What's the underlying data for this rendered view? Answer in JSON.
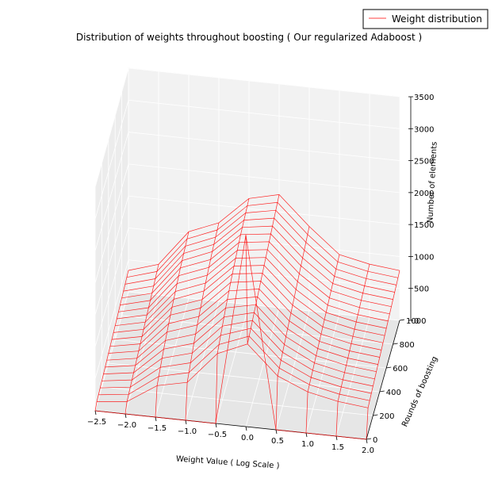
{
  "chart_data": {
    "type": "surface-3d-wireframe",
    "title": "Distribution of weights throughout boosting ( Our regularized Adaboost )",
    "xlabel": "Weight Value ( Log Scale )",
    "ylabel": "Rounds of boosting",
    "zlabel": "Number of elements",
    "xlim": [
      -2.5,
      2.0
    ],
    "ylim": [
      0,
      1000
    ],
    "zlim": [
      0,
      3500
    ],
    "x_ticks": [
      "−2.5",
      "−2.0",
      "−1.5",
      "−1.0",
      "−0.5",
      "0.0",
      "0.5",
      "1.0",
      "1.5",
      "2.0"
    ],
    "y_ticks": [
      "0",
      "200",
      "400",
      "600",
      "800",
      "1000"
    ],
    "z_ticks": [
      "0",
      "500",
      "1000",
      "1500",
      "2000",
      "2500",
      "3000",
      "3500"
    ],
    "legend": {
      "entries": [
        "Weight distribution"
      ],
      "location": "top-right"
    },
    "grid": true,
    "series": [
      {
        "name": "Weight distribution",
        "color": "#ff0000",
        "x": [
          -2.5,
          -2.0,
          -1.5,
          -1.0,
          -0.5,
          0.0,
          0.5,
          1.0,
          1.5,
          2.0
        ],
        "rounds": [
          0,
          50,
          100,
          150,
          200,
          250,
          300,
          350,
          400,
          450,
          500,
          550,
          600,
          650,
          700,
          750,
          800,
          850,
          900,
          950,
          1000
        ],
        "z_rows": [
          [
            0,
            0,
            0,
            0,
            0,
            3000,
            0,
            0,
            0,
            0
          ],
          [
            50,
            100,
            400,
            500,
            1000,
            1200,
            750,
            550,
            450,
            400
          ],
          [
            65,
            120,
            450,
            560,
            1050,
            1230,
            780,
            570,
            470,
            420
          ],
          [
            80,
            140,
            500,
            620,
            1100,
            1260,
            810,
            590,
            490,
            440
          ],
          [
            95,
            160,
            550,
            680,
            1150,
            1290,
            840,
            610,
            510,
            460
          ],
          [
            110,
            180,
            600,
            740,
            1200,
            1320,
            870,
            630,
            530,
            480
          ],
          [
            125,
            200,
            640,
            790,
            1250,
            1350,
            900,
            650,
            550,
            500
          ],
          [
            140,
            220,
            680,
            840,
            1290,
            1380,
            930,
            670,
            570,
            520
          ],
          [
            155,
            240,
            720,
            880,
            1330,
            1410,
            960,
            690,
            590,
            540
          ],
          [
            170,
            260,
            760,
            920,
            1370,
            1440,
            990,
            710,
            610,
            560
          ],
          [
            185,
            280,
            790,
            960,
            1410,
            1470,
            1020,
            730,
            630,
            580
          ],
          [
            200,
            300,
            820,
            1000,
            1440,
            1500,
            1050,
            750,
            650,
            600
          ],
          [
            215,
            320,
            850,
            1030,
            1470,
            1530,
            1080,
            770,
            670,
            620
          ],
          [
            230,
            340,
            880,
            1060,
            1500,
            1560,
            1110,
            790,
            690,
            640
          ],
          [
            245,
            360,
            910,
            1090,
            1530,
            1590,
            1140,
            810,
            710,
            660
          ],
          [
            260,
            380,
            940,
            1120,
            1560,
            1620,
            1170,
            830,
            730,
            680
          ],
          [
            275,
            400,
            960,
            1150,
            1580,
            1650,
            1200,
            850,
            750,
            700
          ],
          [
            290,
            420,
            980,
            1170,
            1600,
            1680,
            1230,
            870,
            770,
            720
          ],
          [
            305,
            440,
            1000,
            1190,
            1620,
            1710,
            1260,
            890,
            790,
            740
          ],
          [
            320,
            460,
            1020,
            1210,
            1640,
            1740,
            1290,
            910,
            810,
            760
          ],
          [
            335,
            480,
            1040,
            1230,
            1660,
            1770,
            1320,
            930,
            830,
            780
          ]
        ]
      }
    ]
  }
}
